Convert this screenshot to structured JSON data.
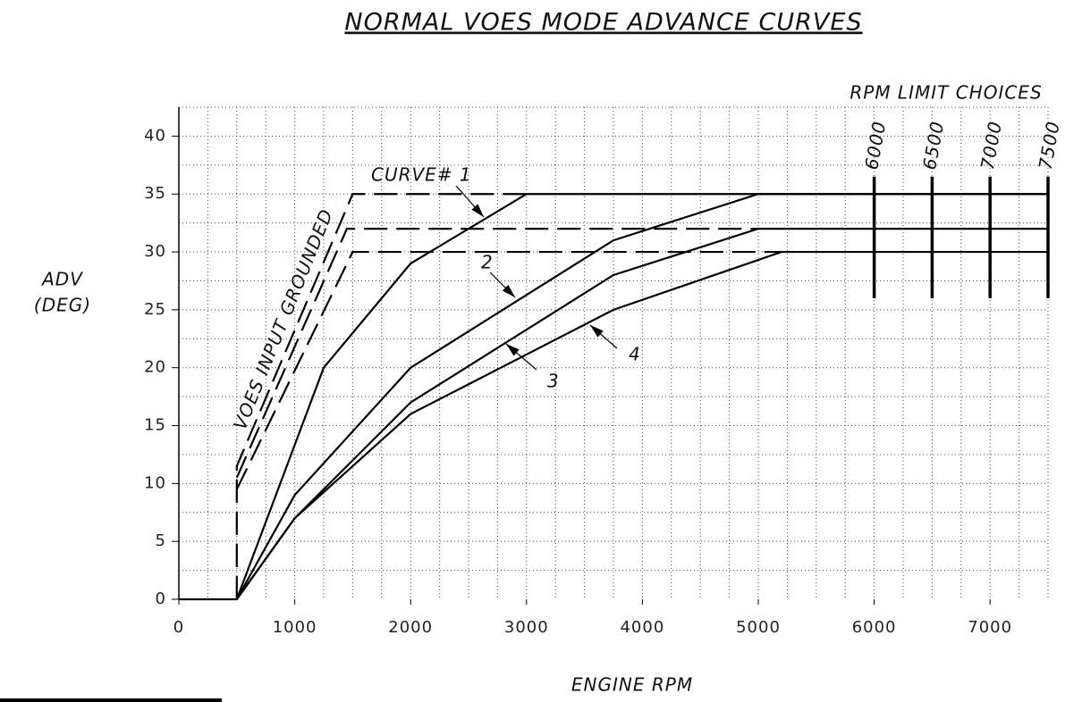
{
  "chart_data": {
    "type": "line",
    "title": "NORMAL VOES MODE ADVANCE CURVES",
    "xlabel": "ENGINE RPM",
    "ylabel": [
      "ADV",
      "(DEG)"
    ],
    "xlim": [
      0,
      7500
    ],
    "ylim": [
      0,
      42.5
    ],
    "xticks": [
      0,
      1000,
      2000,
      3000,
      4000,
      5000,
      6000,
      7000
    ],
    "yticks": [
      0,
      5,
      10,
      15,
      20,
      25,
      30,
      35,
      40
    ],
    "grid": true,
    "minor_grid": {
      "x": 250,
      "y": 2.5
    },
    "color": "#000000",
    "series": [
      {
        "style": "solid",
        "x": [
          0,
          500,
          1250,
          2000,
          3000,
          7500
        ],
        "values": [
          0,
          0,
          20,
          29,
          35,
          35
        ]
      },
      {
        "style": "solid",
        "x": [
          500,
          1000,
          2000,
          3750,
          5000,
          7500
        ],
        "values": [
          0,
          9,
          20,
          31,
          35,
          35
        ]
      },
      {
        "style": "solid",
        "x": [
          500,
          1000,
          2000,
          3750,
          5000,
          7500
        ],
        "values": [
          0,
          7,
          17,
          28,
          32,
          32
        ]
      },
      {
        "style": "solid",
        "x": [
          500,
          1000,
          2000,
          3750,
          5200,
          7500
        ],
        "values": [
          0,
          7,
          16,
          25,
          30,
          30
        ]
      },
      {
        "style": "dashed",
        "x": [
          500,
          500,
          1500,
          3000
        ],
        "values": [
          0,
          11.5,
          35,
          35
        ]
      },
      {
        "style": "dashed",
        "x": [
          500,
          1450,
          5000
        ],
        "values": [
          10.5,
          32,
          32
        ]
      },
      {
        "style": "dashed",
        "x": [
          500,
          1500,
          5200
        ],
        "values": [
          9.5,
          30,
          30
        ]
      }
    ],
    "annotations": [
      "CURVE# 1",
      "2",
      "3",
      "4",
      "VOES INPUT GROUNDED"
    ],
    "rpm_limits": {
      "label": "RPM LIMIT CHOICES",
      "values": [
        6000,
        6500,
        7000,
        7500
      ],
      "range": [
        26,
        36.5
      ]
    }
  }
}
